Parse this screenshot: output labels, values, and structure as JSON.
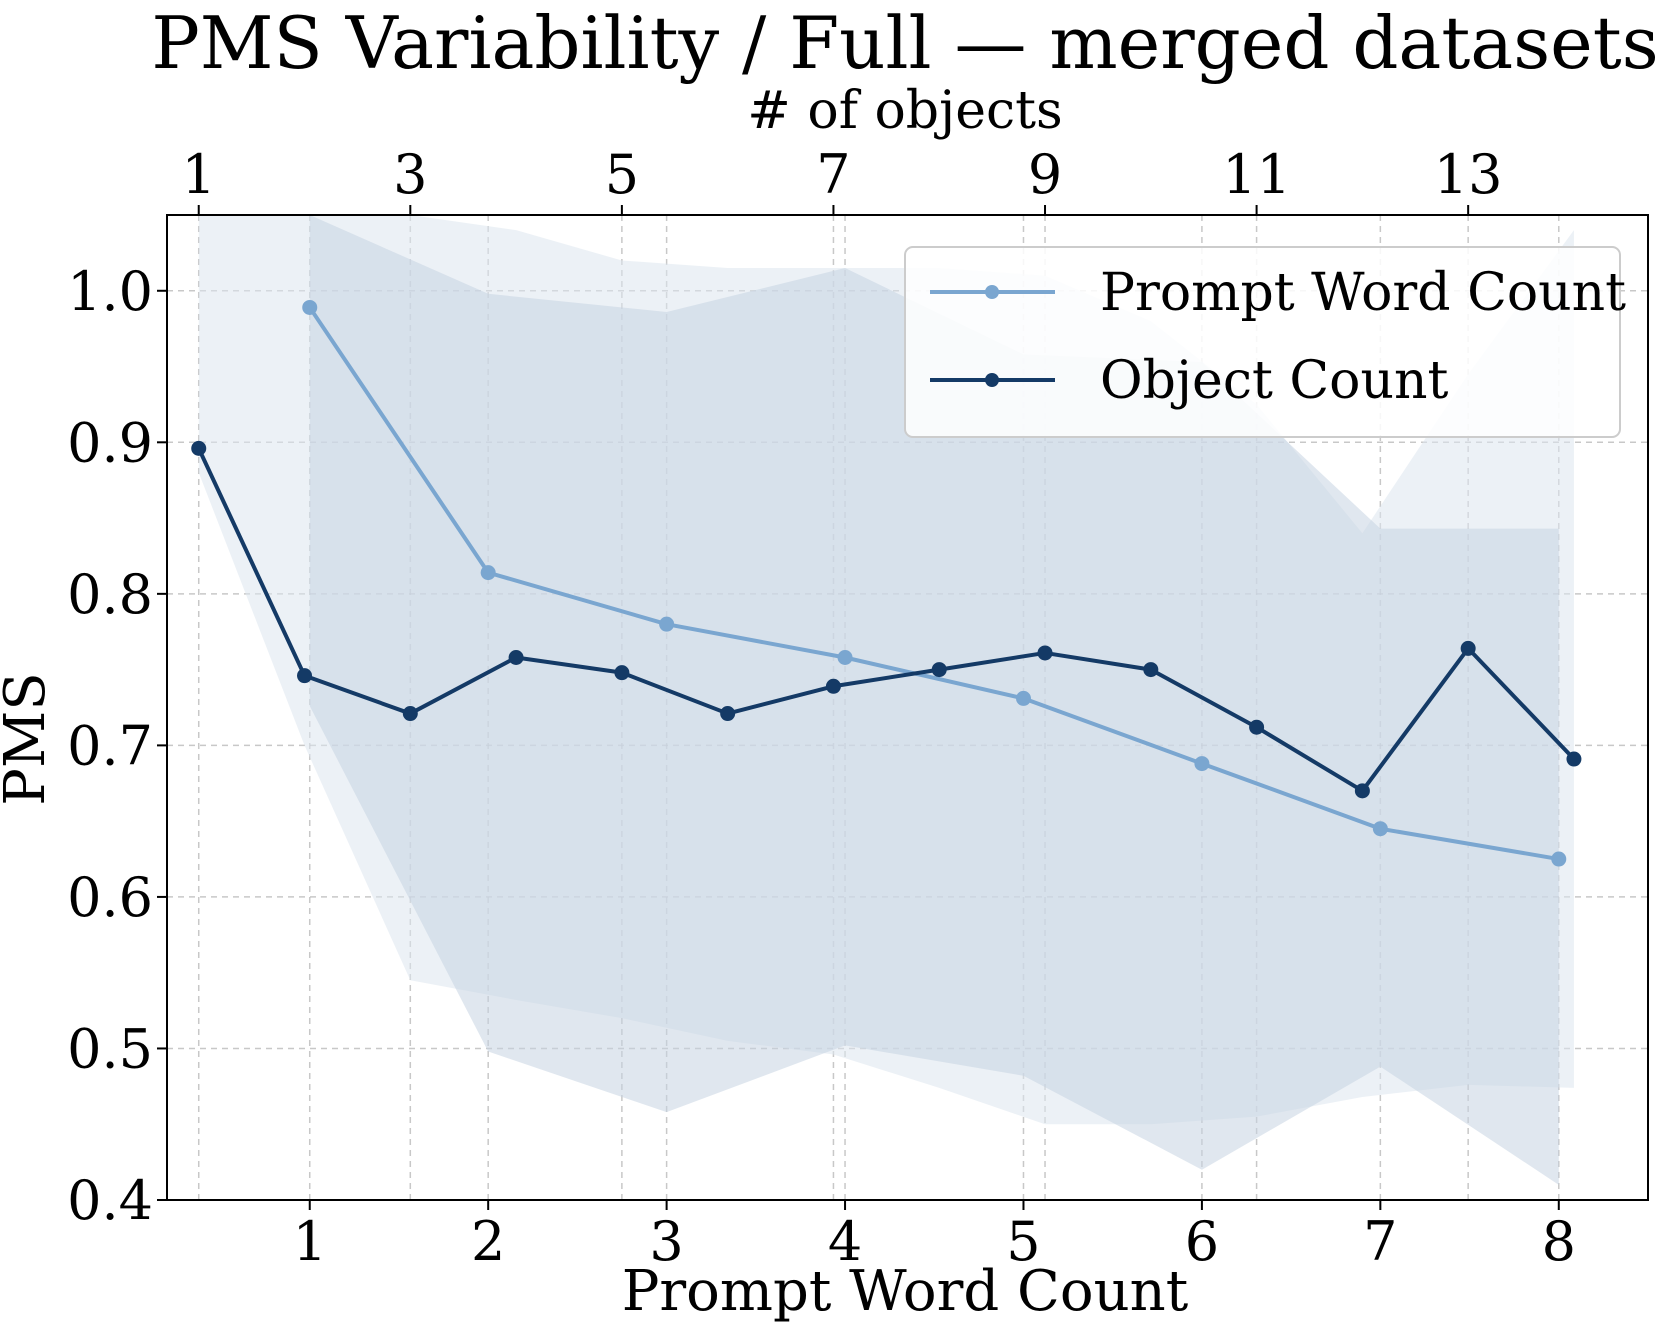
{
  "chart_data": {
    "type": "line",
    "title": "PMS Variability / Full — merged datasets",
    "xlabel": "Prompt Word Count",
    "x2label": "# of objects",
    "ylabel": "PMS",
    "xlim": [
      0.2,
      8.5
    ],
    "x2lim": [
      0.7,
      14.7
    ],
    "ylim": [
      0.4,
      1.05
    ],
    "xticks": [
      1,
      2,
      3,
      4,
      5,
      6,
      7,
      8
    ],
    "x2ticks": [
      1,
      3,
      5,
      7,
      9,
      11,
      13
    ],
    "yticks": [
      0.4,
      0.5,
      0.6,
      0.7,
      0.8,
      0.9,
      1.0
    ],
    "ytick_labels": [
      "0.4",
      "0.5",
      "0.6",
      "0.7",
      "0.8",
      "0.9",
      "1.0"
    ],
    "grid": true,
    "legend_position": "top-right",
    "series": [
      {
        "name": "Prompt Word Count",
        "axis": "bottom",
        "color": "#7aa6d0",
        "x": [
          1,
          2,
          3,
          4,
          5,
          6,
          7,
          8
        ],
        "values": [
          0.989,
          0.814,
          0.78,
          0.758,
          0.731,
          0.688,
          0.645,
          0.625
        ],
        "band_upper": [
          1.07,
          0.998,
          0.986,
          1.015,
          0.958,
          0.953,
          0.843,
          0.843
        ],
        "band_lower": [
          0.726,
          0.498,
          0.458,
          0.502,
          0.482,
          0.42,
          0.488,
          0.41
        ],
        "band_color": "#c7d4e2"
      },
      {
        "name": "Object Count",
        "axis": "top",
        "color": "#143a66",
        "x": [
          1,
          2,
          3,
          4,
          5,
          6,
          7,
          8,
          9,
          10,
          11,
          12,
          13,
          14
        ],
        "values": [
          0.896,
          0.746,
          0.721,
          0.758,
          0.748,
          0.721,
          0.739,
          0.75,
          0.761,
          0.75,
          0.712,
          0.67,
          0.764,
          0.691
        ],
        "band_upper": [
          1.07,
          1.07,
          1.07,
          1.04,
          1.02,
          1.015,
          1.015,
          1.015,
          1.01,
          0.98,
          0.925,
          0.84,
          0.945,
          1.04
        ],
        "band_lower": [
          0.88,
          0.7,
          0.545,
          0.532,
          0.52,
          0.505,
          0.496,
          0.474,
          0.45,
          0.45,
          0.455,
          0.468,
          0.476,
          0.474
        ],
        "band_color": "#dde6ef"
      }
    ]
  }
}
